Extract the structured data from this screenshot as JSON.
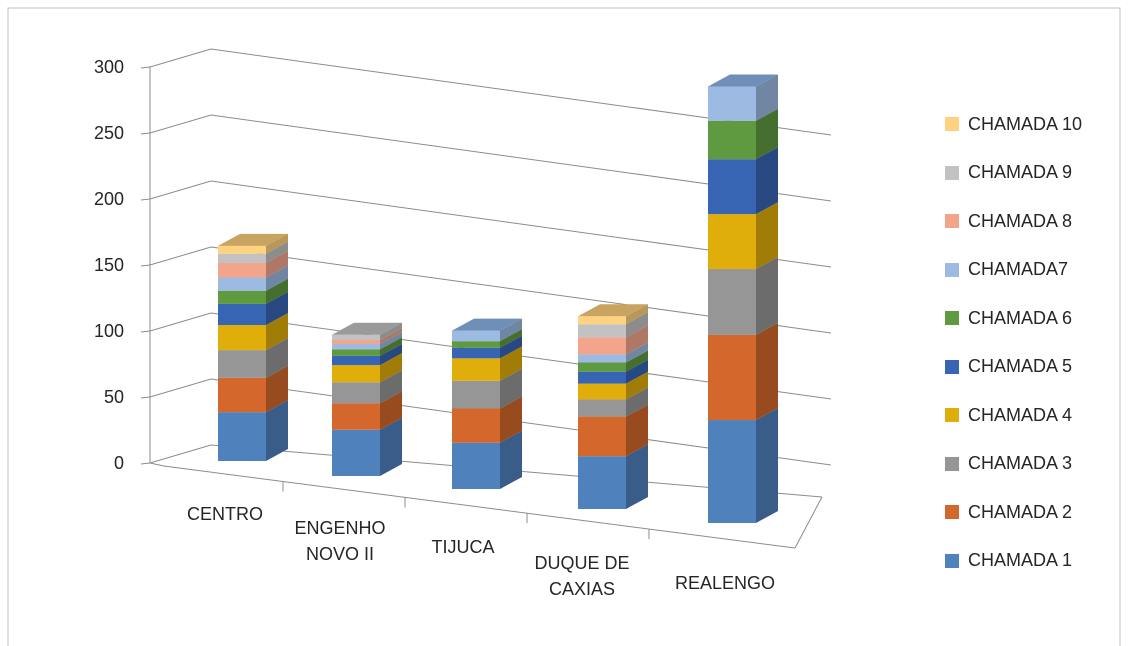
{
  "chart_data": {
    "type": "bar",
    "stacked": true,
    "three_d": true,
    "title": "",
    "xlabel": "",
    "ylabel": "",
    "ylim": [
      0,
      300
    ],
    "yticks": [
      0,
      50,
      100,
      150,
      200,
      250,
      300
    ],
    "grid": true,
    "legend_position": "right",
    "categories": [
      "CENTRO",
      "ENGENHO NOVO II",
      "TIJUCA",
      "DUQUE DE CAXIAS",
      "REALENGO"
    ],
    "category_labels": [
      [
        "CENTRO"
      ],
      [
        "ENGENHO",
        "NOVO II"
      ],
      [
        "TIJUCA"
      ],
      [
        "DUQUE DE",
        "CAXIAS"
      ],
      [
        "REALENGO"
      ]
    ],
    "series": [
      {
        "name": "CHAMADA 1",
        "color": "#4F81BD",
        "values": [
          37,
          35,
          35,
          40,
          75
        ]
      },
      {
        "name": "CHAMADA 2",
        "color": "#D4682C",
        "values": [
          26,
          20,
          26,
          30,
          62
        ]
      },
      {
        "name": "CHAMADA 3",
        "color": "#969696",
        "values": [
          21,
          16,
          21,
          13,
          48
        ]
      },
      {
        "name": "CHAMADA 4",
        "color": "#E0AE0A",
        "values": [
          19,
          13,
          17,
          12,
          40
        ]
      },
      {
        "name": "CHAMADA 5",
        "color": "#3864B4",
        "values": [
          16,
          7,
          8,
          9,
          40
        ]
      },
      {
        "name": "CHAMADA 6",
        "color": "#5F9A41",
        "values": [
          10,
          5,
          5,
          7,
          28
        ]
      },
      {
        "name": "CHAMADA7",
        "color": "#9DBAE2",
        "values": [
          10,
          4,
          8,
          6,
          25
        ]
      },
      {
        "name": "CHAMADA 8",
        "color": "#F3A58C",
        "values": [
          11,
          3,
          0,
          13,
          0
        ]
      },
      {
        "name": "CHAMADA 9",
        "color": "#C2C2C2",
        "values": [
          7,
          4,
          0,
          10,
          0
        ]
      },
      {
        "name": "CHAMADA 10",
        "color": "#FFD27F",
        "values": [
          6,
          0,
          0,
          6,
          0
        ]
      }
    ]
  }
}
